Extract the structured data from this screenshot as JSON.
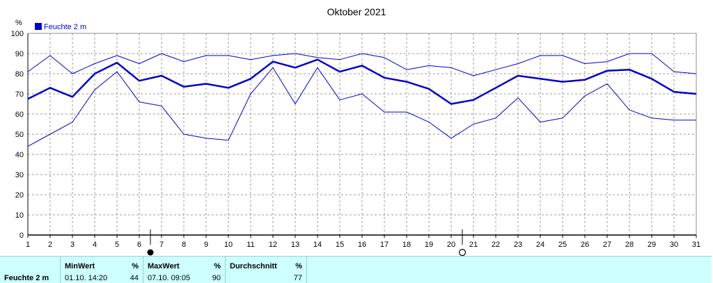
{
  "chart_data": {
    "type": "line",
    "title": "Oktober 2021",
    "ylabel": "%",
    "legend": "top-left",
    "legend_label": "Feuchte  2 m",
    "ylim": [
      0,
      100
    ],
    "y_ticks": [
      0,
      10,
      20,
      30,
      40,
      50,
      60,
      70,
      80,
      90,
      100
    ],
    "x": [
      1,
      2,
      3,
      4,
      5,
      6,
      7,
      8,
      9,
      10,
      11,
      12,
      13,
      14,
      15,
      16,
      17,
      18,
      19,
      20,
      21,
      22,
      23,
      24,
      25,
      26,
      27,
      28,
      29,
      30,
      31
    ],
    "grid": true,
    "series": [
      {
        "role": "max",
        "values": [
          81,
          89,
          80,
          85,
          89,
          85,
          90,
          86,
          89,
          89,
          87,
          89,
          90,
          88,
          87,
          90,
          88,
          82,
          84,
          83,
          79,
          82,
          85,
          89,
          89,
          85,
          86,
          90,
          90,
          81,
          80
        ]
      },
      {
        "role": "avg",
        "values": [
          67.5,
          73,
          68.5,
          80,
          85.5,
          76.5,
          79,
          73.5,
          75,
          73,
          77.5,
          86,
          83,
          87,
          81,
          84,
          78,
          76,
          72.5,
          65,
          67,
          73,
          79,
          77.5,
          76,
          77,
          81.5,
          82,
          77.5,
          71,
          70
        ]
      },
      {
        "role": "min",
        "values": [
          44,
          50,
          56,
          72,
          81,
          66,
          64,
          50,
          48,
          47,
          70,
          83,
          65,
          83,
          67,
          70,
          61,
          61,
          56,
          48,
          55,
          58,
          68,
          56,
          58,
          69,
          75,
          62,
          58,
          57,
          57
        ]
      }
    ],
    "markers": [
      {
        "day": 6.5,
        "symbol": "full-moon"
      },
      {
        "day": 20.5,
        "symbol": "new-moon"
      }
    ],
    "colors": {
      "line": "#0000cc",
      "grid": "#999999",
      "axis": "#000000"
    }
  },
  "footer": {
    "label": "Feuchte  2 m",
    "min_header": "MinWert",
    "max_header": "MaxWert",
    "avg_header": "Durchschnitt",
    "unit": "%",
    "min_time": "01.10.  14:20",
    "min_value": "44",
    "max_time": "07.10.  09:05",
    "max_value": "90",
    "avg_value": "77"
  }
}
